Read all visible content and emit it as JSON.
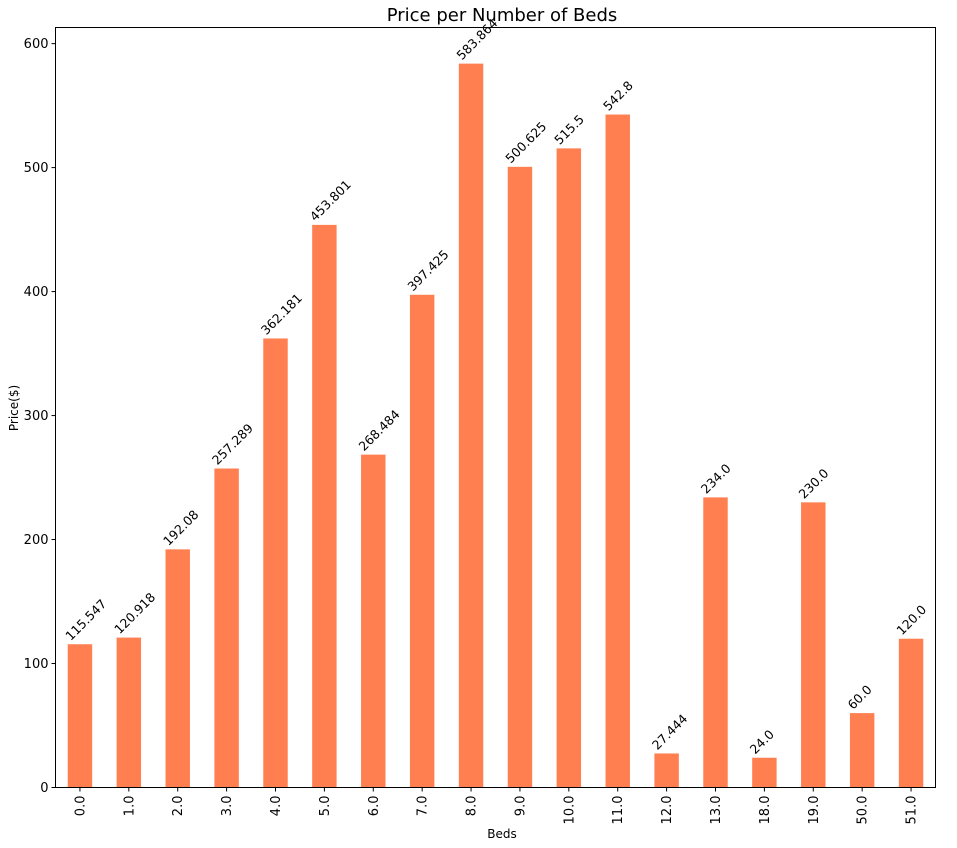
{
  "chart_data": {
    "type": "bar",
    "title": "Price per Number of Beds",
    "xlabel": "Beds",
    "ylabel": "Price($)",
    "categories": [
      "0.0",
      "1.0",
      "2.0",
      "3.0",
      "4.0",
      "5.0",
      "6.0",
      "7.0",
      "8.0",
      "9.0",
      "10.0",
      "11.0",
      "12.0",
      "13.0",
      "18.0",
      "19.0",
      "50.0",
      "51.0"
    ],
    "values": [
      115.547,
      120.918,
      192.08,
      257.289,
      362.181,
      453.801,
      268.484,
      397.425,
      583.864,
      500.625,
      515.5,
      542.8,
      27.444,
      234.0,
      24.0,
      230.0,
      60.0,
      120.0
    ],
    "data_labels": [
      "115.547",
      "120.918",
      "192.08",
      "257.289",
      "362.181",
      "453.801",
      "268.484",
      "397.425",
      "583.864",
      "500.625",
      "515.5",
      "542.8",
      "27.444",
      "234.0",
      "24.0",
      "230.0",
      "60.0",
      "120.0"
    ],
    "ylim": [
      0,
      613
    ],
    "yticks": [
      0,
      100,
      200,
      300,
      400,
      500,
      600
    ],
    "bar_color": "#ff7f50",
    "grid": false,
    "legend": "none"
  }
}
